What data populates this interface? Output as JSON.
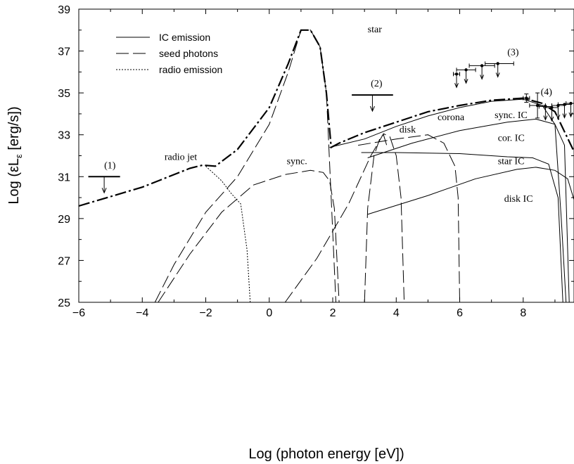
{
  "chart_data": {
    "type": "line",
    "title": "",
    "xlabel": "Log (photon energy [eV])",
    "ylabel": "Log (εL",
    "ylabel_sub": "ε",
    "ylabel_unit": " [erg/s])",
    "xlim": [
      -6,
      9.6
    ],
    "ylim": [
      25,
      39
    ],
    "x_ticks": [
      -6,
      -4,
      -2,
      0,
      2,
      4,
      6,
      8
    ],
    "y_ticks": [
      25,
      27,
      29,
      31,
      33,
      35,
      37,
      39
    ],
    "x_tick_labels": [
      "−6",
      "−4",
      "−2",
      "0",
      "2",
      "4",
      "6",
      "8"
    ],
    "y_tick_labels": [
      "25",
      "27",
      "29",
      "31",
      "33",
      "35",
      "37",
      "39"
    ],
    "grid": false,
    "legend": {
      "position": "top-left",
      "entries": [
        {
          "label": "IC emission",
          "style": "solid"
        },
        {
          "label": "seed photons",
          "style": "dashed"
        },
        {
          "label": "radio emission",
          "style": "dotted"
        }
      ]
    },
    "series": [
      {
        "style": "solid",
        "points": [
          [
            2.9,
            32.15
          ],
          [
            4,
            32.15
          ],
          [
            6,
            32.1
          ],
          [
            7.5,
            31.95
          ],
          [
            8.3,
            31.9
          ],
          [
            8.8,
            31.6
          ],
          [
            9.1,
            30
          ],
          [
            9.25,
            25
          ]
        ]
      },
      {
        "style": "solid",
        "points": [
          [
            3.1,
            29.2
          ],
          [
            5,
            30.1
          ],
          [
            6.5,
            30.9
          ],
          [
            7.8,
            31.35
          ],
          [
            8.4,
            31.45
          ],
          [
            9,
            31.3
          ],
          [
            9.4,
            30.9
          ],
          [
            9.6,
            29.9
          ]
        ]
      },
      {
        "style": "solid",
        "points": [
          [
            3.1,
            31.9
          ],
          [
            4.5,
            32.6
          ],
          [
            6,
            33.2
          ],
          [
            7.5,
            33.6
          ],
          [
            8.4,
            33.75
          ],
          [
            9,
            33.5
          ],
          [
            9.3,
            32.5
          ],
          [
            9.45,
            25
          ]
        ]
      },
      {
        "style": "solid",
        "points": [
          [
            1.9,
            32.4
          ],
          [
            3,
            32.8
          ],
          [
            4,
            33.4
          ],
          [
            5,
            33.9
          ],
          [
            6,
            34.3
          ],
          [
            7,
            34.6
          ],
          [
            8,
            34.7
          ],
          [
            8.6,
            34.4
          ],
          [
            9,
            33.5
          ],
          [
            9.2,
            29
          ],
          [
            9.35,
            25
          ]
        ]
      },
      {
        "style": "dashed",
        "points": [
          [
            -3.6,
            25
          ],
          [
            -3,
            26.8
          ],
          [
            -2,
            29.3
          ],
          [
            -1,
            31
          ],
          [
            0,
            33.5
          ],
          [
            0.6,
            36
          ],
          [
            1,
            38
          ],
          [
            1.3,
            38
          ],
          [
            1.6,
            37.2
          ],
          [
            1.8,
            35
          ],
          [
            1.95,
            30
          ],
          [
            2.1,
            25
          ]
        ]
      },
      {
        "style": "dashed",
        "points": [
          [
            -3.5,
            25
          ],
          [
            -2.5,
            27.3
          ],
          [
            -1.5,
            29.3
          ],
          [
            -0.5,
            30.6
          ],
          [
            0.5,
            31.1
          ],
          [
            1.3,
            31.3
          ],
          [
            1.7,
            31.2
          ],
          [
            1.9,
            30.8
          ],
          [
            2.05,
            29.5
          ],
          [
            2.2,
            25
          ]
        ]
      },
      {
        "style": "dashed",
        "points": [
          [
            0.5,
            25
          ],
          [
            1.5,
            27.1
          ],
          [
            2.5,
            29.7
          ],
          [
            3.2,
            32
          ],
          [
            3.6,
            33.05
          ],
          [
            3.8,
            32.9
          ],
          [
            4,
            32
          ],
          [
            4.15,
            30
          ],
          [
            4.25,
            25
          ]
        ]
      },
      {
        "style": "dashed",
        "points": [
          [
            2.8,
            32.5
          ],
          [
            4,
            32.8
          ],
          [
            5,
            33
          ],
          [
            5.5,
            32.6
          ],
          [
            5.85,
            31.5
          ],
          [
            5.95,
            30
          ],
          [
            6,
            25
          ]
        ]
      },
      {
        "style": "dashed",
        "points": [
          [
            3,
            25
          ],
          [
            3.1,
            29.5
          ],
          [
            3.3,
            32
          ],
          [
            3.5,
            32.9
          ],
          [
            3.6,
            33
          ],
          [
            3.7,
            32.5
          ]
        ]
      },
      {
        "style": "dotted",
        "points": [
          [
            -2,
            31.5
          ],
          [
            -1.5,
            30.8
          ],
          [
            -1.2,
            30.2
          ],
          [
            -0.9,
            29.7
          ],
          [
            -0.7,
            27.5
          ],
          [
            -0.6,
            25
          ]
        ]
      },
      {
        "style": "dashdot",
        "points": [
          [
            -6,
            29.6
          ],
          [
            -4,
            30.5
          ],
          [
            -2.5,
            31.4
          ],
          [
            -2.1,
            31.55
          ],
          [
            -1.7,
            31.5
          ],
          [
            -1,
            32.3
          ],
          [
            0,
            34.3
          ],
          [
            0.6,
            36.4
          ],
          [
            1,
            38
          ],
          [
            1.3,
            38
          ],
          [
            1.6,
            37.2
          ],
          [
            1.8,
            35
          ],
          [
            1.95,
            32.4
          ],
          [
            2.2,
            32.6
          ],
          [
            3,
            33.1
          ],
          [
            4,
            33.6
          ],
          [
            5,
            34.1
          ],
          [
            6,
            34.4
          ],
          [
            7,
            34.65
          ],
          [
            8,
            34.75
          ],
          [
            8.6,
            34.5
          ],
          [
            9,
            34.1
          ],
          [
            9.6,
            32.2
          ]
        ]
      }
    ],
    "upper_limits": [
      {
        "label": "(1)",
        "x_from": -5.7,
        "x_to": -4.7,
        "y": 31
      },
      {
        "label": "(2)",
        "x_from": 2.6,
        "x_to": 3.9,
        "y": 34.9
      }
    ],
    "data_points": [
      {
        "x": 5.9,
        "y": 35.9,
        "xerr_low": 0.1,
        "xerr_high": 0.1,
        "upper_limit": true
      },
      {
        "x": 6.2,
        "y": 36.1,
        "xerr_low": 0.3,
        "xerr_high": 0.3,
        "upper_limit": true
      },
      {
        "x": 6.7,
        "y": 36.3,
        "xerr_low": 0.4,
        "xerr_high": 0.4,
        "upper_limit": true
      },
      {
        "x": 7.2,
        "y": 36.4,
        "xerr_low": 0.4,
        "xerr_high": 0.5,
        "upper_limit": true
      },
      {
        "x": 8.1,
        "y": 34.75,
        "xerr_low": 0.1,
        "xerr_high": 0.1,
        "yerr": 0.2,
        "upper_limit": false
      },
      {
        "x": 8.45,
        "y": 34.4,
        "xerr_low": 0.25,
        "xerr_high": 0.25,
        "yerr": 0.6,
        "upper_limit": false
      },
      {
        "x": 8.7,
        "y": 34.35,
        "xerr_low": 0.2,
        "xerr_high": 0.2,
        "upper_limit": true
      },
      {
        "x": 8.9,
        "y": 34.3,
        "xerr_low": 0.2,
        "xerr_high": 0.2,
        "upper_limit": true
      },
      {
        "x": 9.1,
        "y": 34.4,
        "xerr_low": 0.2,
        "xerr_high": 0.2,
        "upper_limit": true
      },
      {
        "x": 9.3,
        "y": 34.45,
        "xerr_low": 0.2,
        "xerr_high": 0.2,
        "upper_limit": true
      },
      {
        "x": 9.5,
        "y": 34.5,
        "xerr_low": 0.15,
        "xerr_high": 0.15,
        "upper_limit": true
      }
    ],
    "annotations": [
      {
        "text": "star",
        "x": 3.1,
        "y": 37.9
      },
      {
        "text": "(3)",
        "x": 7.5,
        "y": 36.8
      },
      {
        "text": "(1)",
        "x": -5.2,
        "y": 31.4
      },
      {
        "text": "(2)",
        "x": 3.2,
        "y": 35.3
      },
      {
        "text": "(4)",
        "x": 8.55,
        "y": 34.9
      },
      {
        "text": "radio jet",
        "x": -3.3,
        "y": 31.8
      },
      {
        "text": "sync.",
        "x": 0.55,
        "y": 31.6
      },
      {
        "text": "disk",
        "x": 4.1,
        "y": 33.1
      },
      {
        "text": "corona",
        "x": 5.3,
        "y": 33.7
      },
      {
        "text": "sync. IC",
        "x": 7.1,
        "y": 33.8
      },
      {
        "text": "cor. IC",
        "x": 7.2,
        "y": 32.7
      },
      {
        "text": "star IC",
        "x": 7.2,
        "y": 31.6
      },
      {
        "text": "disk IC",
        "x": 7.4,
        "y": 29.8
      }
    ]
  }
}
